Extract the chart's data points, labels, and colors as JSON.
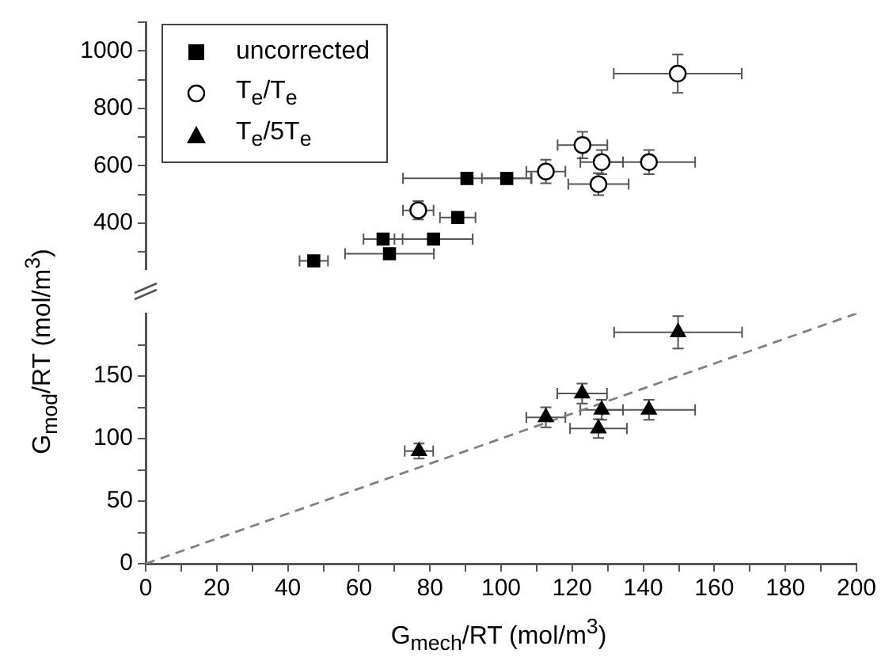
{
  "chart_data": [
    {
      "type": "scatter",
      "xlim": [
        0,
        200
      ],
      "ylim": [
        240,
        1100
      ],
      "yticks": [
        {
          "value": 300,
          "label": null
        },
        400,
        {
          "value": 500,
          "label": null
        },
        600,
        {
          "value": 700,
          "label": null
        },
        800,
        {
          "value": 900,
          "label": null
        },
        1000,
        {
          "value": 1100,
          "label": null
        }
      ],
      "tick_labels": "y",
      "legend": "top left",
      "series": [
        {
          "name": "uncorrected",
          "color": "#000000",
          "marker": "square",
          "x": [
            90.4,
            101.6,
            87.8,
            66.8,
            81,
            68.6,
            47.3
          ],
          "values": [
            556,
            556,
            420,
            345,
            345,
            294,
            269
          ],
          "xerrors": [
            18,
            7,
            5,
            5.5,
            11,
            12.5,
            4
          ]
        },
        {
          "name": "T$_{e}$/T$_{e}$",
          "color": "#000000",
          "marker": "circle",
          "x": [
            149.7,
            122.9,
            128.3,
            141.6,
            112.6,
            127.4,
            76.7
          ],
          "values": [
            921,
            672,
            613,
            613,
            580,
            536,
            445
          ],
          "errors": [
            67,
            46,
            42,
            42,
            41,
            38,
            32
          ],
          "xerrors": [
            18,
            7,
            6,
            13,
            5.5,
            8.5,
            4.3
          ]
        }
      ]
    },
    {
      "type": "scatter",
      "xlabel": "G$_{mech}$/RT (mol/m$^{3}$)",
      "ylabel": "G$_{mod}$/RT (mol/m$^{3}$)",
      "xlim": [
        0,
        200
      ],
      "xticks": [
        0,
        {
          "value": 10,
          "label": null
        },
        20,
        {
          "value": 30,
          "label": null
        },
        40,
        {
          "value": 50,
          "label": null
        },
        60,
        {
          "value": 70,
          "label": null
        },
        80,
        {
          "value": 90,
          "label": null
        },
        100,
        {
          "value": 110,
          "label": null
        },
        120,
        {
          "value": 130,
          "label": null
        },
        140,
        {
          "value": 150,
          "label": null
        },
        160,
        {
          "value": 170,
          "label": null
        },
        180,
        {
          "value": 190,
          "label": null
        },
        200
      ],
      "ylim": [
        0,
        200
      ],
      "yticks": [
        0,
        {
          "value": 25,
          "label": null
        },
        50,
        {
          "value": 75,
          "label": null
        },
        100,
        {
          "value": 125,
          "label": null
        },
        150,
        {
          "value": 175,
          "label": null
        }
      ],
      "series": [
        {
          "name": "T$_{e}$/5T$_{e}$",
          "color": "#000000",
          "marker": "triangle",
          "x": [
            149.8,
            122.8,
            128.3,
            141.6,
            112.6,
            127.4,
            76.9
          ],
          "values": [
            185,
            136,
            123,
            123,
            117,
            108,
            90
          ],
          "errors": [
            13,
            8,
            8,
            8,
            8,
            7.5,
            6
          ],
          "xerrors": [
            18,
            7,
            6,
            13,
            5.5,
            8,
            4
          ]
        },
        {
          "type": "line",
          "color": "#808080",
          "marker": "none",
          "line_style": "dashed",
          "x": [
            0,
            200
          ],
          "values": [
            0,
            200
          ]
        }
      ]
    }
  ]
}
